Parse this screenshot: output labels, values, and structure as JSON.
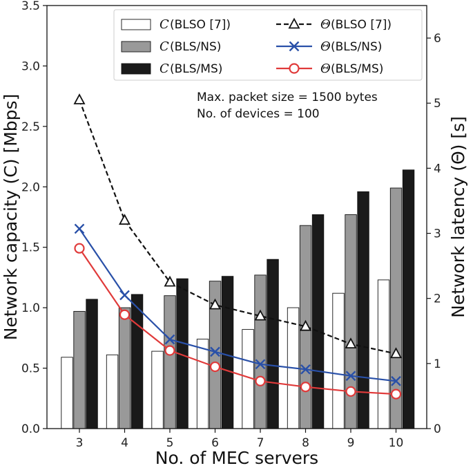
{
  "chart_data": {
    "type": "bar",
    "categories": [
      "3",
      "4",
      "5",
      "6",
      "7",
      "8",
      "9",
      "10"
    ],
    "xlabel": "No. of MEC servers",
    "ylabel_left": "Network capacity (C) [Mbps]",
    "ylabel_right": "Network latency (Θ) [s]",
    "ylim_left": [
      0,
      3.5
    ],
    "ylim_right": [
      0,
      6.5
    ],
    "yticks_left": [
      "0.0",
      "0.5",
      "1.0",
      "1.5",
      "2.0",
      "2.5",
      "3.0",
      "3.5"
    ],
    "yticks_right": [
      "0",
      "1",
      "2",
      "3",
      "4",
      "5",
      "6"
    ],
    "bar_series": [
      {
        "name": "C (BLSO [7])",
        "symbol": "C",
        "label": " (BLSO [7])",
        "fill": "#ffffff",
        "values": [
          0.59,
          0.61,
          0.64,
          0.74,
          0.82,
          1.0,
          1.12,
          1.23
        ]
      },
      {
        "name": "C (BLS/NS)",
        "symbol": "C",
        "label": " (BLS/NS)",
        "fill": "#999999",
        "values": [
          0.97,
          1.0,
          1.1,
          1.22,
          1.27,
          1.68,
          1.77,
          1.99
        ]
      },
      {
        "name": "C (BLS/MS)",
        "symbol": "C",
        "label": " (BLS/MS)",
        "fill": "#1a1a1a",
        "values": [
          1.07,
          1.11,
          1.24,
          1.26,
          1.4,
          1.77,
          1.96,
          2.14
        ]
      }
    ],
    "line_series": [
      {
        "name": "Θ (BLSO [7])",
        "symbol": "Θ",
        "label": " (BLSO [7])",
        "color": "#111111",
        "marker": "triangle",
        "dashed": true,
        "values": [
          5.05,
          3.2,
          2.25,
          1.9,
          1.73,
          1.57,
          1.3,
          1.15
        ]
      },
      {
        "name": "Θ (BLS/NS)",
        "symbol": "Θ",
        "label": " (BLS/NS)",
        "color": "#2950a8",
        "marker": "x",
        "dashed": false,
        "values": [
          3.07,
          2.05,
          1.37,
          1.18,
          0.99,
          0.91,
          0.81,
          0.73
        ]
      },
      {
        "name": "Θ (BLS/MS)",
        "symbol": "Θ",
        "label": " (BLS/MS)",
        "color": "#e03a3a",
        "marker": "circle",
        "dashed": false,
        "values": [
          2.77,
          1.75,
          1.2,
          0.95,
          0.73,
          0.64,
          0.57,
          0.53
        ]
      }
    ],
    "annotations": [
      "Max. packet size = 1500 bytes",
      "No. of devices = 100"
    ],
    "legend_position": "top",
    "grid": false
  }
}
